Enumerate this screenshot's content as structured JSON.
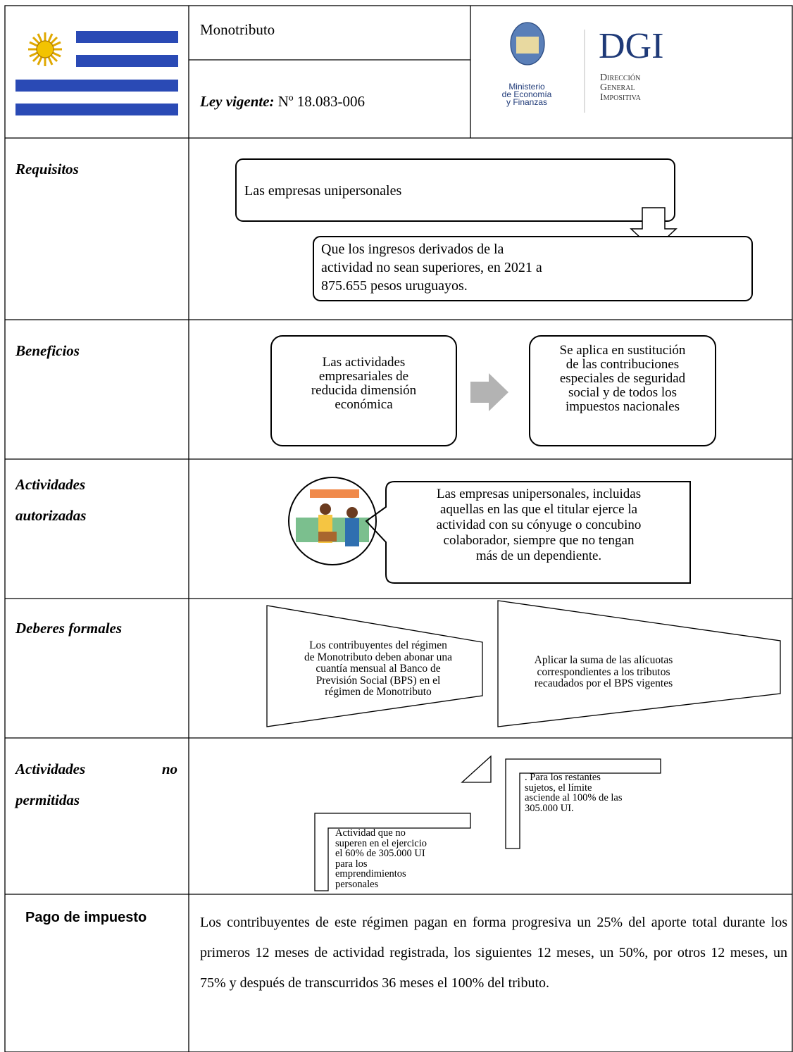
{
  "header": {
    "title": "Monotributo",
    "law_label": "Ley vigente:",
    "law_number": "Nº 18.083-006",
    "logo": {
      "ministry": [
        "Ministerio",
        "de Economía",
        "y Finanzas"
      ],
      "dgi": "DGI",
      "dgi_sub": [
        "Dirección",
        "General",
        "Impositiva"
      ]
    }
  },
  "rows": [
    {
      "label": [
        "Requisitos"
      ],
      "boxes": [
        {
          "lines": [
            "Las empresas unipersonales"
          ]
        },
        {
          "lines": [
            "Que los ingresos derivados de la",
            "actividad no sean superiores, en 2021 a",
            "875.655 pesos uruguayos."
          ]
        }
      ]
    },
    {
      "label": [
        "Beneficios"
      ],
      "boxes": [
        {
          "lines": [
            "Las actividades",
            "empresariales de",
            "reducida dimensión",
            "económica"
          ]
        },
        {
          "lines": [
            "Se aplica en sustitución",
            "de las contribuciones",
            "especiales de seguridad",
            "social y de todos los",
            "impuestos nacionales"
          ]
        }
      ]
    },
    {
      "label": [
        "Actividades",
        "autorizadas"
      ],
      "boxes": [
        {
          "lines": [
            "Las empresas unipersonales, incluidas",
            "aquellas en las que el titular ejerce la",
            "actividad con su cónyuge o concubino",
            "colaborador, siempre que no tengan",
            "más de un dependiente."
          ]
        }
      ]
    },
    {
      "label": [
        "Deberes formales"
      ],
      "boxes": [
        {
          "lines": [
            "Los contribuyentes del régimen",
            "de Monotributo deben abonar una",
            "cuantía mensual al Banco de",
            "Previsión Social (BPS) en el",
            "régimen de Monotributo"
          ]
        },
        {
          "lines": [
            "Aplicar la suma de las alícuotas",
            "correspondientes a los tributos",
            "recaudados por el BPS vigentes"
          ]
        }
      ]
    },
    {
      "label": [
        "Actividades",
        "no",
        "permitidas"
      ],
      "boxes": [
        {
          "lines": [
            "Actividad que no",
            "superen en el ejercicio",
            "el 60% de 305.000 UI",
            "para los",
            "emprendimientos",
            "personales"
          ]
        },
        {
          "lines": [
            ". Para los restantes",
            "sujetos, el límite",
            "asciende al 100% de las",
            "305.000 UI."
          ]
        }
      ]
    }
  ],
  "payment": {
    "label": "Pago de impuesto",
    "text": "Los contribuyentes de este régimen pagan en forma progresiva un 25% del aporte total durante los primeros 12 meses de actividad registrada, los siguientes 12 meses, un 50%, por otros 12 meses, un 75% y después de transcurridos 36 meses el 100% del tributo."
  }
}
